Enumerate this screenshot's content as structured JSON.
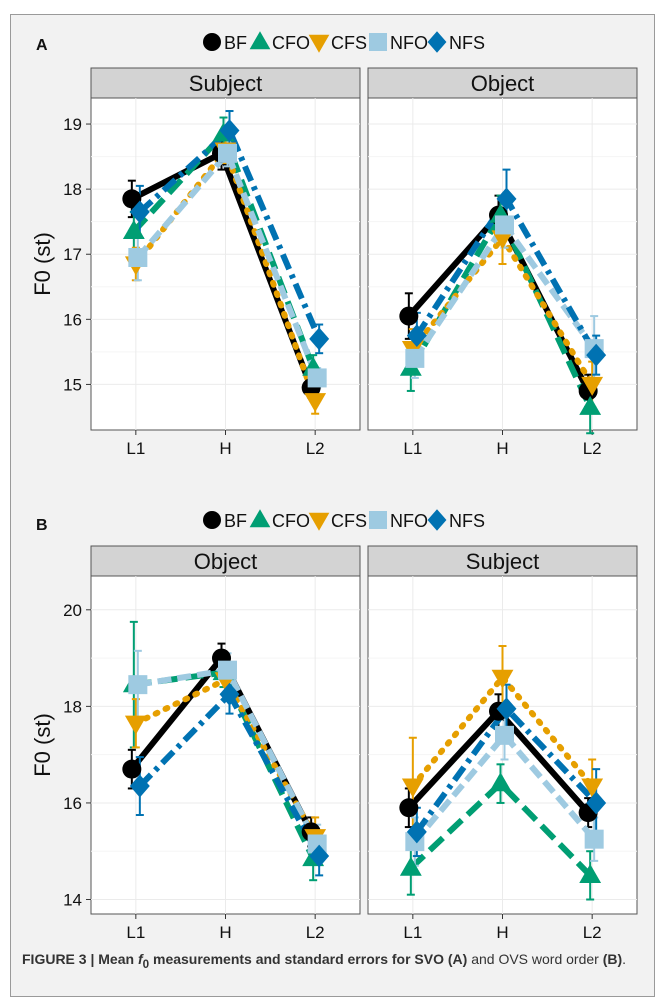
{
  "legend_labels": [
    "BF",
    "CFO",
    "CFS",
    "NFO",
    "NFS"
  ],
  "caption": {
    "figure_label": "FIGURE 3 |",
    "lead_before": "Mean ",
    "symbol": "f",
    "symbol_sub": "0",
    "lead_after": " measurements and standard errors for SVO",
    "lead_tag": "(A)",
    "mid": " and OVS word order ",
    "tail_tag": "(B)",
    "end": "."
  },
  "chart_data": [
    {
      "type": "line",
      "panel_label": "A",
      "ylabel": "F0 (st)",
      "ylim": [
        14.3,
        19.4
      ],
      "yticks": [
        15,
        16,
        17,
        18,
        19
      ],
      "categories": [
        "L1",
        "H",
        "L2"
      ],
      "facets": [
        {
          "title": "Subject",
          "series": [
            {
              "name": "BF",
              "values": [
                17.85,
                18.55,
                14.95
              ],
              "errors": [
                0.28,
                0.25,
                0.15
              ]
            },
            {
              "name": "CFO",
              "values": [
                17.35,
                18.85,
                15.25
              ],
              "errors": [
                0.3,
                0.25,
                0.2
              ]
            },
            {
              "name": "CFS",
              "values": [
                16.85,
                18.6,
                14.75
              ],
              "errors": [
                0.25,
                0.2,
                0.2
              ]
            },
            {
              "name": "NFO",
              "values": [
                16.95,
                18.55,
                15.1
              ],
              "errors": [
                0.35,
                0.2,
                0.15
              ]
            },
            {
              "name": "NFS",
              "values": [
                17.65,
                18.9,
                15.7
              ],
              "errors": [
                0.4,
                0.3,
                0.22
              ]
            }
          ]
        },
        {
          "title": "Object",
          "series": [
            {
              "name": "BF",
              "values": [
                16.05,
                17.6,
                14.9
              ],
              "errors": [
                0.35,
                0.3,
                0.25
              ]
            },
            {
              "name": "CFO",
              "values": [
                15.25,
                17.6,
                14.65
              ],
              "errors": [
                0.35,
                0.3,
                0.4
              ]
            },
            {
              "name": "CFS",
              "values": [
                15.55,
                17.25,
                15.0
              ],
              "errors": [
                0.3,
                0.4,
                0.35
              ]
            },
            {
              "name": "NFO",
              "values": [
                15.4,
                17.45,
                15.55
              ],
              "errors": [
                0.3,
                0.35,
                0.5
              ]
            },
            {
              "name": "NFS",
              "values": [
                15.75,
                17.85,
                15.45
              ],
              "errors": [
                0.35,
                0.45,
                0.3
              ]
            }
          ]
        }
      ]
    },
    {
      "type": "line",
      "panel_label": "B",
      "ylabel": "F0 (st)",
      "ylim": [
        13.7,
        20.7
      ],
      "yticks": [
        14,
        16,
        18,
        20
      ],
      "categories": [
        "L1",
        "H",
        "L2"
      ],
      "facets": [
        {
          "title": "Object",
          "series": [
            {
              "name": "BF",
              "values": [
                16.7,
                19.0,
                15.4
              ],
              "errors": [
                0.4,
                0.3,
                0.3
              ]
            },
            {
              "name": "CFO",
              "values": [
                18.45,
                18.7,
                14.85
              ],
              "errors": [
                1.3,
                0.3,
                0.45
              ]
            },
            {
              "name": "CFS",
              "values": [
                17.65,
                18.55,
                15.3
              ],
              "errors": [
                0.5,
                0.4,
                0.4
              ]
            },
            {
              "name": "NFO",
              "values": [
                18.45,
                18.75,
                15.15
              ],
              "errors": [
                0.7,
                0.35,
                0.4
              ]
            },
            {
              "name": "NFS",
              "values": [
                16.35,
                18.25,
                14.9
              ],
              "errors": [
                0.6,
                0.4,
                0.4
              ]
            }
          ]
        },
        {
          "title": "Subject",
          "series": [
            {
              "name": "BF",
              "values": [
                15.9,
                17.9,
                15.8
              ],
              "errors": [
                0.4,
                0.35,
                0.3
              ]
            },
            {
              "name": "CFO",
              "values": [
                14.65,
                16.4,
                14.5
              ],
              "errors": [
                0.55,
                0.4,
                0.5
              ]
            },
            {
              "name": "CFS",
              "values": [
                16.35,
                18.6,
                16.35
              ],
              "errors": [
                1.0,
                0.65,
                0.55
              ]
            },
            {
              "name": "NFO",
              "values": [
                15.2,
                17.4,
                15.25
              ],
              "errors": [
                0.5,
                0.5,
                0.45
              ]
            },
            {
              "name": "NFS",
              "values": [
                15.4,
                17.95,
                16.0
              ],
              "errors": [
                0.5,
                0.5,
                0.7
              ]
            }
          ]
        }
      ]
    }
  ],
  "series_styles": {
    "BF": {
      "color": "#000000",
      "line": "solid",
      "marker": "circle"
    },
    "CFO": {
      "color": "#009e73",
      "line": "longdash",
      "marker": "triangle-up"
    },
    "CFS": {
      "color": "#e69f00",
      "line": "dotted",
      "marker": "triangle-down"
    },
    "NFO": {
      "color": "#9ecae1",
      "line": "dash",
      "marker": "square"
    },
    "NFS": {
      "color": "#0072b2",
      "line": "dashdot",
      "marker": "diamond"
    }
  }
}
